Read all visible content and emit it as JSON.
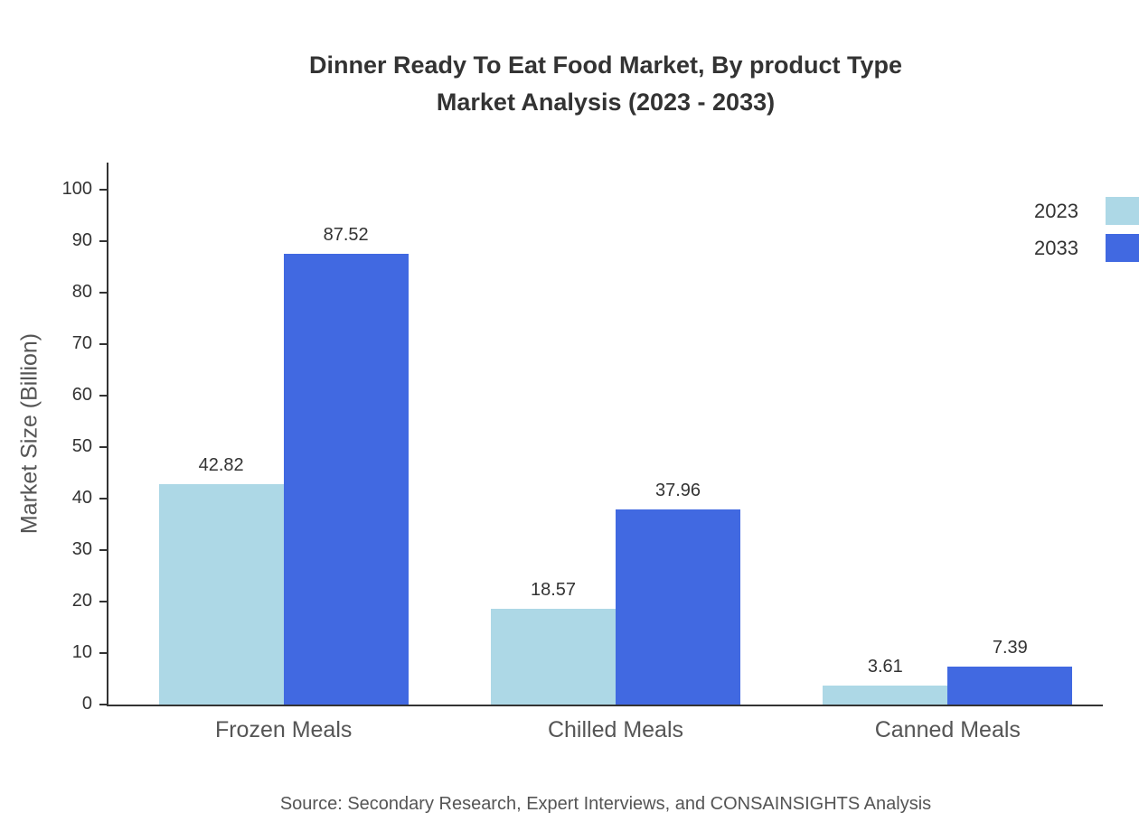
{
  "chart_data": {
    "type": "bar",
    "title": "Dinner Ready To Eat Food Market, By product Type Market Analysis (2023 - 2033)",
    "title_line1": "Dinner Ready To Eat Food Market, By product Type",
    "title_line2": "Market Analysis (2023 - 2033)",
    "xlabel": "",
    "ylabel": "Market Size (Billion)",
    "categories": [
      "Frozen Meals",
      "Chilled Meals",
      "Canned Meals"
    ],
    "series": [
      {
        "name": "2023",
        "color": "#add8e6",
        "values": [
          42.82,
          18.57,
          3.61
        ]
      },
      {
        "name": "2033",
        "color": "#4169e1",
        "values": [
          87.52,
          37.96,
          7.39
        ]
      }
    ],
    "ylim": [
      0,
      100
    ],
    "ytick_step": 10,
    "grid": false,
    "legend_position": "top-right",
    "source": "Source: Secondary Research, Expert Interviews, and CONSAINSIGHTS Analysis"
  }
}
